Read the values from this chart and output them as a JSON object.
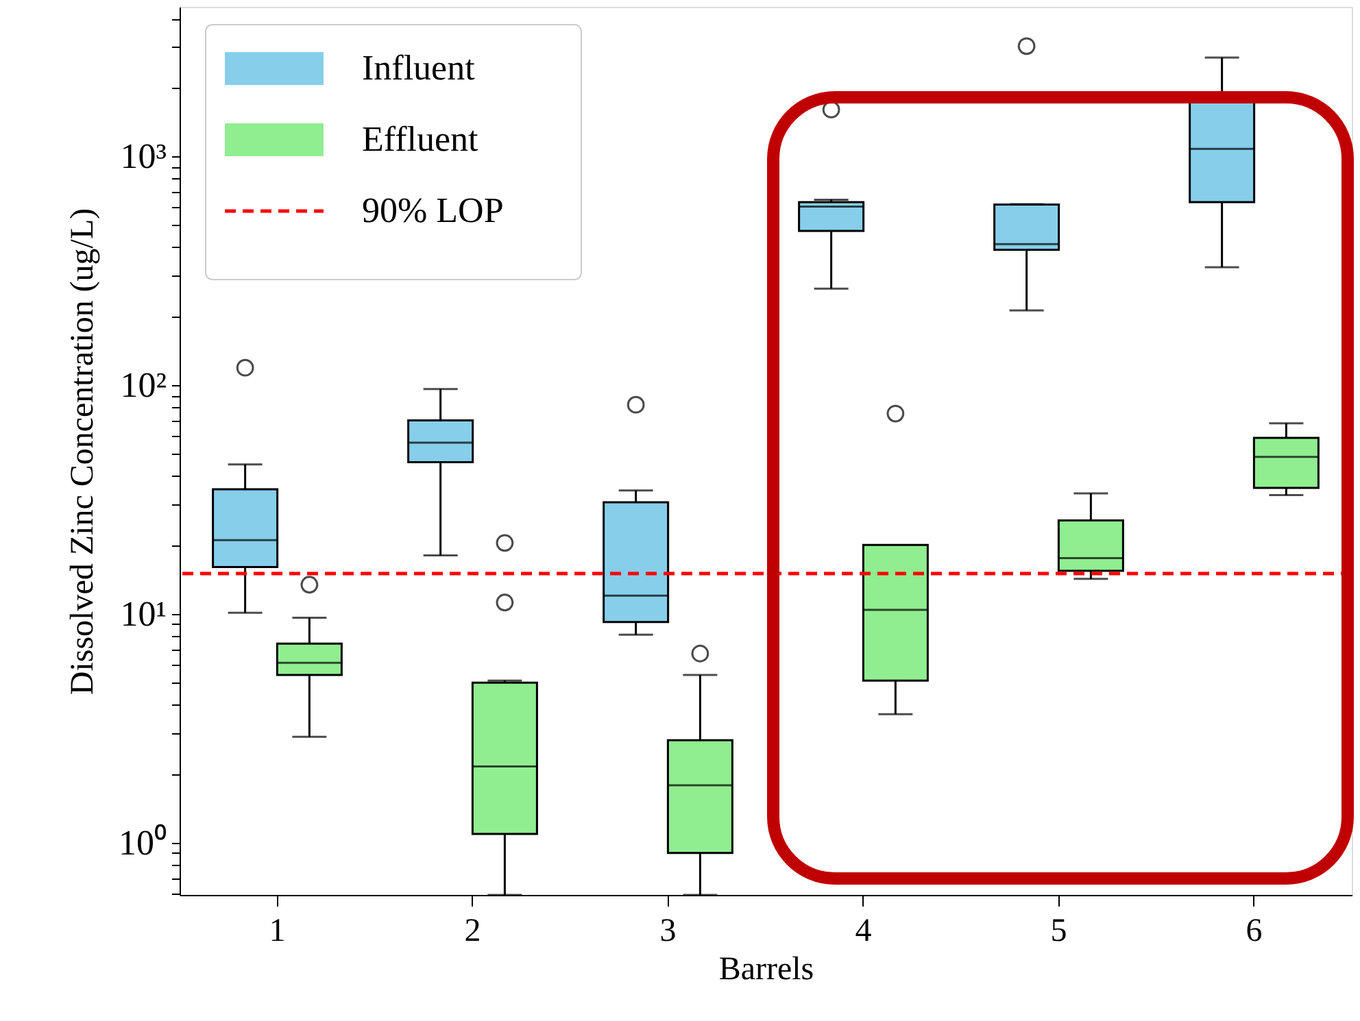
{
  "chart_data": {
    "type": "box",
    "xlabel": "Barrels",
    "ylabel": "Dissolved Zinc Concentration (ug/L)",
    "categories": [
      "1",
      "2",
      "3",
      "4",
      "5",
      "6"
    ],
    "series": [
      {
        "name": "Influent",
        "color": "#87ceeb",
        "boxes": [
          {
            "low": 10.1,
            "q1": 16,
            "median": 21,
            "q3": 35,
            "high": 45,
            "outliers": [
              119
            ]
          },
          {
            "low": 18,
            "q1": 46,
            "median": 56,
            "q3": 70,
            "high": 96
          },
          {
            "low": 8.1,
            "q1": 9.2,
            "median": 12,
            "q3": 30.7,
            "high": 34.6,
            "outliers": [
              82
            ]
          },
          {
            "low": 264,
            "q1": 472,
            "median": 603,
            "q3": 630,
            "high": 646,
            "outliers": [
              1600
            ]
          },
          {
            "low": 212,
            "q1": 390,
            "median": 413,
            "q3": 615,
            "high": 617,
            "outliers": [
              3030
            ]
          },
          {
            "low": 327,
            "q1": 630,
            "median": 1077,
            "q3": 1730,
            "high": 2700
          }
        ]
      },
      {
        "name": "Effluent",
        "color": "#90ee90",
        "boxes": [
          {
            "low": 2.9,
            "q1": 5.4,
            "median": 6.1,
            "q3": 7.4,
            "high": 9.6,
            "outliers": [
              13.4
            ]
          },
          {
            "low": 0.59,
            "q1": 1.09,
            "median": 2.15,
            "q3": 5.0,
            "high": 5.1,
            "outliers": [
              11.2,
              20.4
            ]
          },
          {
            "low": 0.59,
            "q1": 0.9,
            "median": 1.78,
            "q3": 2.8,
            "high": 5.4,
            "outliers": [
              6.7
            ]
          },
          {
            "low": 3.64,
            "q1": 5.1,
            "median": 10.4,
            "q3": 20,
            "high": 20,
            "outliers": [
              75
            ]
          },
          {
            "low": 14.2,
            "q1": 15.4,
            "median": 17.5,
            "q3": 25.6,
            "high": 33.6
          },
          {
            "low": 33,
            "q1": 35.5,
            "median": 48.5,
            "q3": 58.7,
            "high": 68
          }
        ]
      }
    ],
    "ref_lines": [
      {
        "axis": "y",
        "value": 15,
        "label": "90% LOP",
        "color": "#ff0000",
        "line_style": "dashed"
      }
    ],
    "log": true,
    "ylim": [
      0.59,
      4500
    ],
    "yticks": [
      {
        "value": 0.6,
        "label": null
      },
      {
        "value": 0.7,
        "label": null
      },
      {
        "value": 0.8,
        "label": null
      },
      {
        "value": 0.9,
        "label": null
      },
      {
        "value": 1,
        "label": "10⁰"
      },
      {
        "value": 2,
        "label": null
      },
      {
        "value": 3,
        "label": null
      },
      {
        "value": 4,
        "label": null
      },
      {
        "value": 5,
        "label": null
      },
      {
        "value": 6,
        "label": null
      },
      {
        "value": 7,
        "label": null
      },
      {
        "value": 8,
        "label": null
      },
      {
        "value": 9,
        "label": null
      },
      {
        "value": 10,
        "label": "10¹"
      },
      {
        "value": 20,
        "label": null
      },
      {
        "value": 30,
        "label": null
      },
      {
        "value": 40,
        "label": null
      },
      {
        "value": 50,
        "label": null
      },
      {
        "value": 60,
        "label": null
      },
      {
        "value": 70,
        "label": null
      },
      {
        "value": 80,
        "label": null
      },
      {
        "value": 90,
        "label": null
      },
      {
        "value": 100,
        "label": "10²"
      },
      {
        "value": 200,
        "label": null
      },
      {
        "value": 300,
        "label": null
      },
      {
        "value": 400,
        "label": null
      },
      {
        "value": 500,
        "label": null
      },
      {
        "value": 600,
        "label": null
      },
      {
        "value": 700,
        "label": null
      },
      {
        "value": 800,
        "label": null
      },
      {
        "value": 900,
        "label": null
      },
      {
        "value": 1000,
        "label": "10³"
      },
      {
        "value": 2000,
        "label": null
      },
      {
        "value": 3000,
        "label": null
      },
      {
        "value": 4000,
        "label": null
      }
    ],
    "grid": false,
    "legend": "top left",
    "marker": "circle"
  }
}
